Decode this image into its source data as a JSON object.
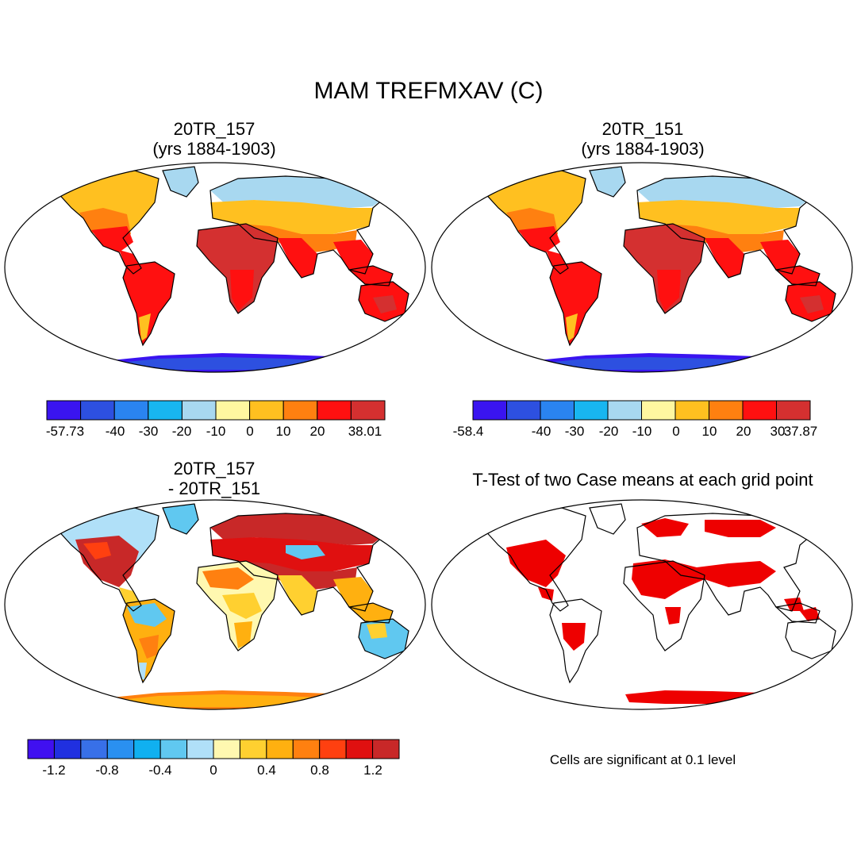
{
  "title": "MAM TREFMXAV (C)",
  "panels": {
    "p1": {
      "title_line1": "20TR_157",
      "title_line2": "(yrs 1884-1903)"
    },
    "p2": {
      "title_line1": "20TR_151",
      "title_line2": "(yrs 1884-1903)"
    },
    "p3": {
      "title_line1": "20TR_157",
      "title_line2": "- 20TR_151"
    },
    "p4": {
      "title_line1": "T-Test of two Case means at each grid point"
    }
  },
  "colorbars": {
    "cb1": {
      "colors": [
        "#3a14f0",
        "#2d50e0",
        "#2a84f0",
        "#18b6f0",
        "#a8d8f0",
        "#fff7a0",
        "#ffc020",
        "#ff8010",
        "#ff1010",
        "#d43030"
      ],
      "labels": [
        "-57.73",
        "-40",
        "-30",
        "-20",
        "-10",
        "0",
        "10",
        "20",
        "38.01"
      ]
    },
    "cb2": {
      "colors": [
        "#3a14f0",
        "#2d50e0",
        "#2a84f0",
        "#18b6f0",
        "#a8d8f0",
        "#fff7a0",
        "#ffc020",
        "#ff8010",
        "#ff1010",
        "#d43030"
      ],
      "labels": [
        "-58.4",
        "-40",
        "-30",
        "-20",
        "-10",
        "0",
        "10",
        "20",
        "30",
        "37.87"
      ]
    },
    "cb3": {
      "colors": [
        "#4010f0",
        "#2030e0",
        "#3870e8",
        "#2a90f0",
        "#10b0f0",
        "#60c8f0",
        "#b0e0f8",
        "#fff8b0",
        "#ffd030",
        "#ffb010",
        "#ff8010",
        "#ff4010",
        "#e01010",
        "#c82828"
      ],
      "labels": [
        "-1.2",
        "-0.8",
        "-0.4",
        "0",
        "0.4",
        "0.8",
        "1.2"
      ]
    }
  },
  "significance_note": "Cells are significant at 0.1 level",
  "colors": {
    "land_warm": "#ff1010",
    "land_hot": "#d43030",
    "significant": "#ee0000"
  }
}
